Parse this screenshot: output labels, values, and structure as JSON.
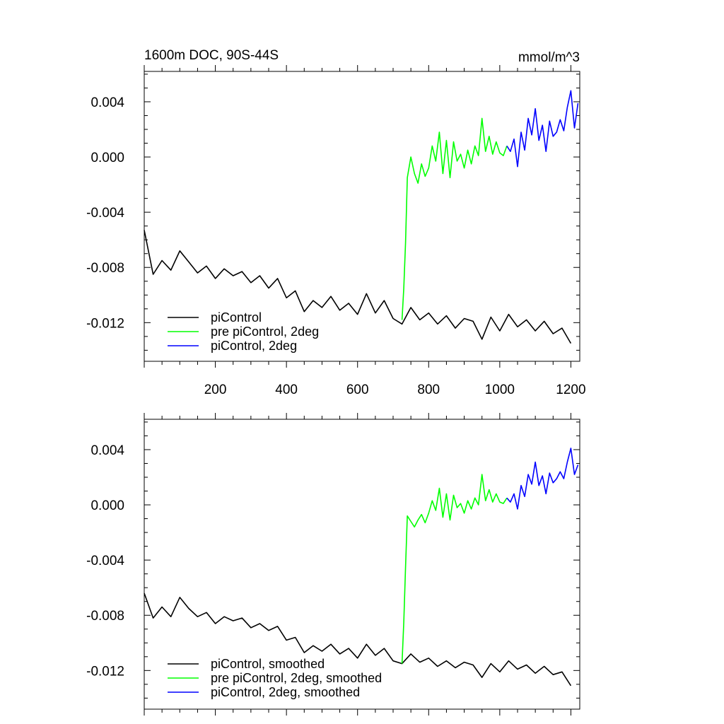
{
  "chart_data": [
    {
      "type": "line",
      "title": "1600m DOC, 90S-44S",
      "units": "mmol/m^3",
      "xlim": [
        0,
        1225
      ],
      "ylim": [
        -0.0148,
        0.0062
      ],
      "xticks": [
        200,
        400,
        600,
        800,
        1000,
        1200
      ],
      "xtick_labels": [
        "200",
        "400",
        "600",
        "800",
        "1000",
        "1200"
      ],
      "yticks": [
        0.004,
        0.0,
        -0.004,
        -0.008,
        -0.012
      ],
      "ytick_labels": [
        "0.004",
        "0.000",
        "-0.004",
        "-0.008",
        "-0.012"
      ],
      "legend_position": "bottom-left",
      "series": [
        {
          "name": "piControl",
          "color": "#000000",
          "x": [
            0,
            25,
            50,
            75,
            100,
            125,
            150,
            175,
            200,
            225,
            250,
            275,
            300,
            325,
            350,
            375,
            400,
            425,
            450,
            475,
            500,
            525,
            550,
            575,
            600,
            625,
            650,
            675,
            700,
            725,
            750,
            775,
            800,
            825,
            850,
            875,
            900,
            925,
            950,
            975,
            1000,
            1025,
            1050,
            1075,
            1100,
            1125,
            1150,
            1175,
            1200
          ],
          "y": [
            -0.0053,
            -0.0085,
            -0.0075,
            -0.0082,
            -0.0068,
            -0.0076,
            -0.0084,
            -0.0079,
            -0.0088,
            -0.0081,
            -0.0086,
            -0.0083,
            -0.0091,
            -0.0086,
            -0.0095,
            -0.0088,
            -0.0102,
            -0.0097,
            -0.0112,
            -0.0104,
            -0.0109,
            -0.0101,
            -0.0111,
            -0.0106,
            -0.0114,
            -0.0099,
            -0.0113,
            -0.0104,
            -0.0117,
            -0.0121,
            -0.0109,
            -0.0118,
            -0.0113,
            -0.0121,
            -0.0115,
            -0.0124,
            -0.0117,
            -0.0119,
            -0.0132,
            -0.0116,
            -0.0126,
            -0.0114,
            -0.0123,
            -0.0118,
            -0.0126,
            -0.0119,
            -0.0128,
            -0.0124,
            -0.0135
          ]
        },
        {
          "name": "pre piControl, 2deg",
          "color": "#00ff00",
          "x": [
            725,
            730,
            735,
            740,
            750,
            760,
            770,
            780,
            790,
            800,
            810,
            820,
            830,
            840,
            850,
            860,
            870,
            880,
            890,
            900,
            910,
            920,
            930,
            940,
            950,
            960,
            970,
            980,
            990,
            1000,
            1010,
            1020
          ],
          "y": [
            -0.0118,
            -0.0095,
            -0.0062,
            -0.0015,
            0.0,
            -0.0012,
            -0.0019,
            -0.0005,
            -0.0014,
            -0.0008,
            0.0008,
            -0.0003,
            0.0018,
            -0.0012,
            0.0012,
            -0.0015,
            0.0011,
            -0.0003,
            0.0002,
            -0.0008,
            0.0005,
            -0.0005,
            0.0008,
            0.0001,
            0.0028,
            0.0004,
            0.0015,
            0.0002,
            0.0011,
            0.0003,
            0.0001,
            0.0008
          ]
        },
        {
          "name": "piControl, 2deg",
          "color": "#0000ff",
          "x": [
            1020,
            1030,
            1040,
            1050,
            1060,
            1070,
            1080,
            1090,
            1100,
            1110,
            1120,
            1130,
            1140,
            1150,
            1160,
            1170,
            1180,
            1190,
            1200,
            1210,
            1220
          ],
          "y": [
            0.0008,
            0.0004,
            0.0013,
            -0.0007,
            0.0018,
            0.0005,
            0.0028,
            0.0016,
            0.0035,
            0.0012,
            0.0023,
            0.0004,
            0.0026,
            0.0015,
            0.0018,
            0.0027,
            0.0019,
            0.0036,
            0.0048,
            0.0021,
            0.0039
          ]
        }
      ]
    },
    {
      "type": "line",
      "title": "",
      "xlim": [
        0,
        1225
      ],
      "ylim": [
        -0.0148,
        0.0062
      ],
      "yticks": [
        0.004,
        0.0,
        -0.004,
        -0.008,
        -0.012
      ],
      "ytick_labels": [
        "0.004",
        "0.000",
        "-0.004",
        "-0.008",
        "-0.012"
      ],
      "legend_position": "bottom-left",
      "series": [
        {
          "name": "piControl, smoothed",
          "color": "#000000",
          "x": [
            0,
            25,
            50,
            75,
            100,
            125,
            150,
            175,
            200,
            225,
            250,
            275,
            300,
            325,
            350,
            375,
            400,
            425,
            450,
            475,
            500,
            525,
            550,
            575,
            600,
            625,
            650,
            675,
            700,
            725,
            750,
            775,
            800,
            825,
            850,
            875,
            900,
            925,
            950,
            975,
            1000,
            1025,
            1050,
            1075,
            1100,
            1125,
            1150,
            1175,
            1200
          ],
          "y": [
            -0.0064,
            -0.0082,
            -0.0074,
            -0.0081,
            -0.0067,
            -0.0075,
            -0.0081,
            -0.0078,
            -0.0086,
            -0.0081,
            -0.0084,
            -0.0082,
            -0.0089,
            -0.0086,
            -0.0091,
            -0.0088,
            -0.0098,
            -0.0096,
            -0.0107,
            -0.0102,
            -0.0106,
            -0.0101,
            -0.0108,
            -0.0104,
            -0.0111,
            -0.0101,
            -0.0109,
            -0.0104,
            -0.0113,
            -0.0115,
            -0.0108,
            -0.0114,
            -0.0111,
            -0.0117,
            -0.0113,
            -0.0118,
            -0.0114,
            -0.0116,
            -0.0125,
            -0.0115,
            -0.0121,
            -0.0113,
            -0.0119,
            -0.0116,
            -0.0122,
            -0.0117,
            -0.0123,
            -0.0121,
            -0.0131
          ]
        },
        {
          "name": "pre piControl, 2deg, smoothed",
          "color": "#00ff00",
          "x": [
            725,
            730,
            735,
            740,
            750,
            760,
            770,
            780,
            790,
            800,
            810,
            820,
            830,
            840,
            850,
            860,
            870,
            880,
            890,
            900,
            910,
            920,
            930,
            940,
            950,
            960,
            970,
            980,
            990,
            1000,
            1010,
            1020
          ],
          "y": [
            -0.0115,
            -0.0085,
            -0.0045,
            -0.0008,
            -0.0012,
            -0.0016,
            -0.0011,
            -0.0007,
            -0.0013,
            -0.0006,
            0.0003,
            -0.0004,
            0.0012,
            -0.0009,
            0.0008,
            -0.0011,
            0.0007,
            -0.0002,
            0.0001,
            -0.0006,
            0.0003,
            -0.0003,
            0.0005,
            0.0,
            0.0022,
            0.0003,
            0.0011,
            0.0002,
            0.0008,
            0.0002,
            0.0001,
            0.0005
          ]
        },
        {
          "name": "piControl, 2deg, smoothed",
          "color": "#0000ff",
          "x": [
            1020,
            1030,
            1040,
            1050,
            1060,
            1070,
            1080,
            1090,
            1100,
            1110,
            1120,
            1130,
            1140,
            1150,
            1160,
            1170,
            1180,
            1190,
            1200,
            1210,
            1220
          ],
          "y": [
            0.0005,
            0.0002,
            0.0008,
            -0.0003,
            0.0014,
            0.0006,
            0.0022,
            0.0015,
            0.0031,
            0.0014,
            0.0021,
            0.0008,
            0.0023,
            0.0016,
            0.0019,
            0.0024,
            0.0019,
            0.0031,
            0.0041,
            0.0022,
            0.0029
          ]
        }
      ]
    }
  ]
}
